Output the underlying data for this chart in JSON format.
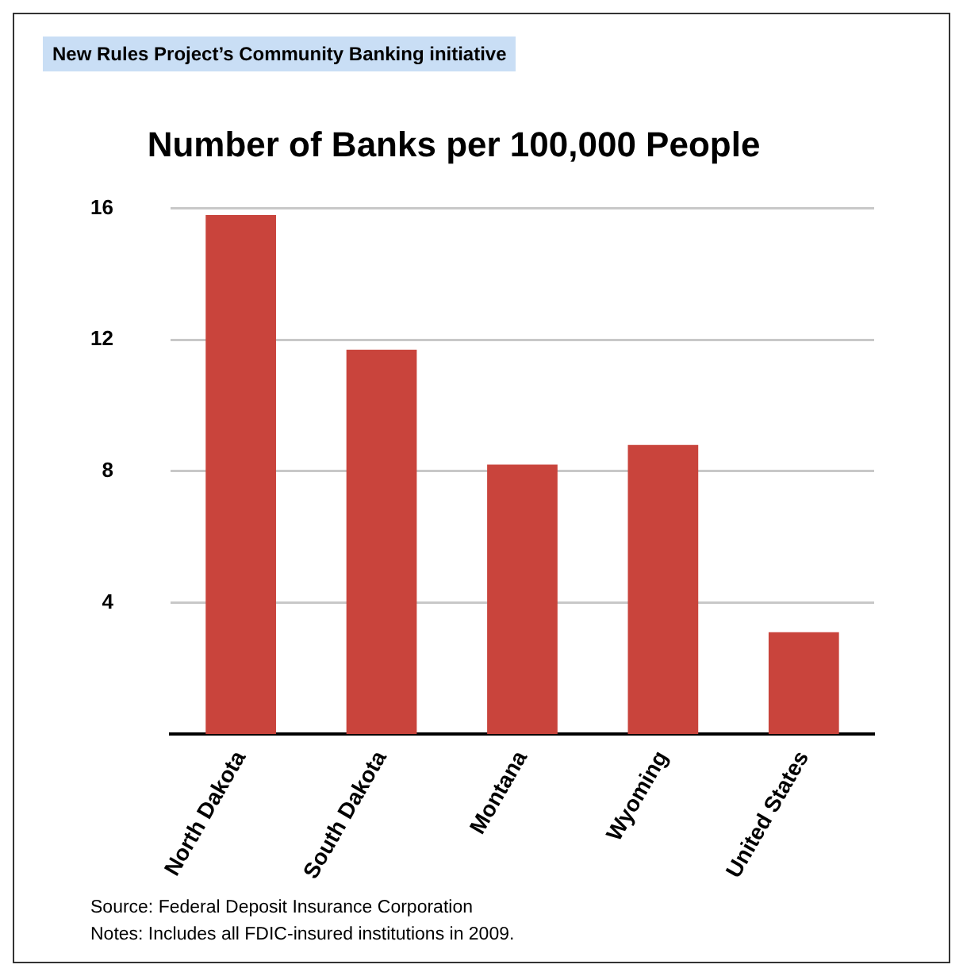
{
  "chart_data": {
    "type": "bar",
    "title": "Number of Banks per 100,000 People",
    "subtitle": "New Rules Project’s Community Banking initiative",
    "categories": [
      "North Dakota",
      "South Dakota",
      "Montana",
      "Wyoming",
      "United States"
    ],
    "values": [
      15.8,
      11.7,
      8.2,
      8.8,
      3.1
    ],
    "color": "#c9443c",
    "ylim": [
      0,
      16
    ],
    "yticks": [
      4,
      8,
      12,
      16
    ],
    "grid": "y",
    "annotations": [
      "Source: Federal Deposit Insurance Corporation",
      "Notes: Includes all FDIC-insured institutions in 2009."
    ]
  }
}
